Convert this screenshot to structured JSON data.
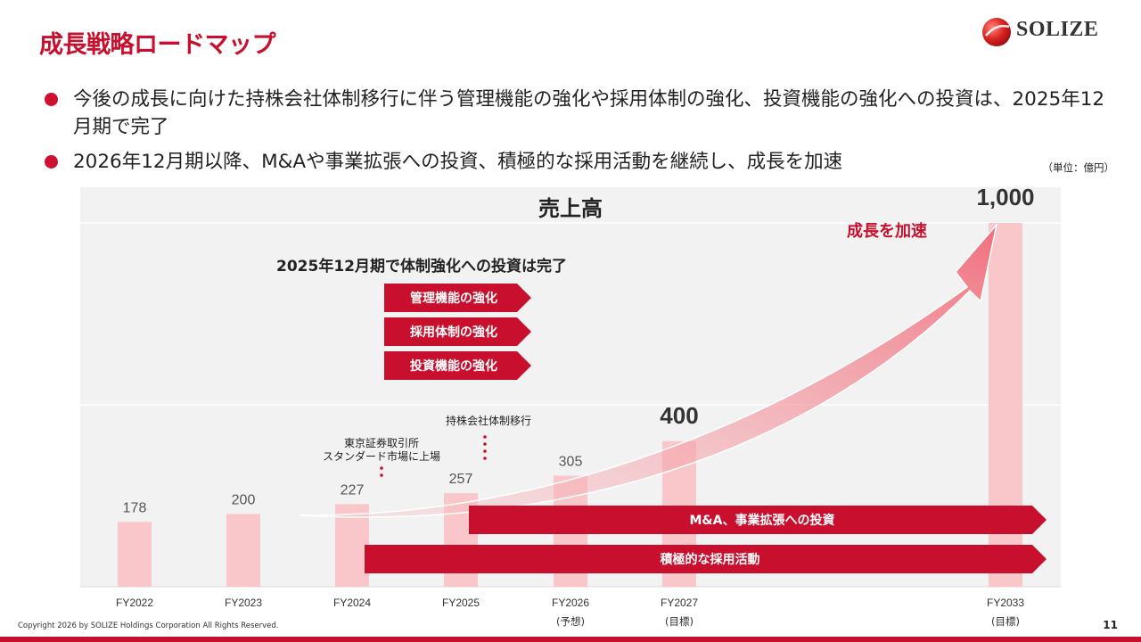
{
  "header": {
    "title": "成長戦略ロードマップ",
    "logo_text": "SOLIZE"
  },
  "bullets": [
    "今後の成長に向けた持株会社体制移行に伴う管理機能の強化や採用体制の強化、投資機能の強化への投資は、2025年12月期で完了",
    "2026年12月期以降、M&Aや事業拡張への投資、積極的な採用活動を継続し、成長を加速"
  ],
  "unit_label": "（単位：億円）",
  "chart_data": {
    "type": "bar",
    "title": "売上高",
    "categories": [
      "FY2022",
      "FY2023",
      "FY2024",
      "FY2025",
      "FY2026",
      "FY2027",
      "FY2033"
    ],
    "category_notes": [
      "",
      "",
      "",
      "",
      "(予想)",
      "(目標)",
      "(目標)"
    ],
    "values": [
      178,
      200,
      227,
      257,
      305,
      400,
      1000
    ],
    "value_labels": [
      "178",
      "200",
      "227",
      "257",
      "305",
      "400",
      "1,000"
    ],
    "emphasized_labels": [
      5,
      6
    ],
    "ylim": [
      0,
      1000
    ],
    "bar_color": "#f9c6c9",
    "accent_color": "#c8102e",
    "annotations": {
      "investment_heading": "2025年12月期で体制強化への投資は完了",
      "investment_items": [
        "管理機能の強化",
        "採用体制の強化",
        "投資機能の強化"
      ],
      "listing_note": [
        "東京証券取引所",
        "スタンダード市場に上場"
      ],
      "holding_note": "持株会社体制移行",
      "growth_label": "成長を加速",
      "ma_bar": "M&A、事業拡張への投資",
      "hiring_bar": "積極的な採用活動"
    }
  },
  "footer": {
    "copyright": "Copyright 2026 by SOLIZE Holdings Corporation All Rights Reserved.",
    "page_number": "11"
  }
}
